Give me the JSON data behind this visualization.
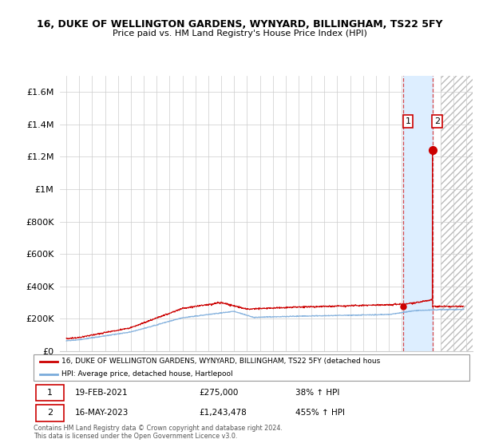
{
  "title": "16, DUKE OF WELLINGTON GARDENS, WYNYARD, BILLINGHAM, TS22 5FY",
  "subtitle": "Price paid vs. HM Land Registry's House Price Index (HPI)",
  "ylabel_ticks": [
    "£0",
    "£200K",
    "£400K",
    "£600K",
    "£800K",
    "£1M",
    "£1.2M",
    "£1.4M",
    "£1.6M"
  ],
  "ytick_values": [
    0,
    200000,
    400000,
    600000,
    800000,
    1000000,
    1200000,
    1400000,
    1600000
  ],
  "ylim": [
    0,
    1700000
  ],
  "xlim_start": 1994.5,
  "xlim_end": 2026.5,
  "hpi_color": "#7aabdb",
  "price_color": "#cc0000",
  "shaded_color": "#ddeeff",
  "grid_color": "#cccccc",
  "sale1_x": 2021.12,
  "sale1_y": 275000,
  "sale1_label": "1",
  "sale2_x": 2023.37,
  "sale2_y": 1243478,
  "sale2_label": "2",
  "legend_line1": "16, DUKE OF WELLINGTON GARDENS, WYNYARD, BILLINGHAM, TS22 5FY (detached hous",
  "legend_line2": "HPI: Average price, detached house, Hartlepool",
  "table_row1": [
    "1",
    "19-FEB-2021",
    "£275,000",
    "38% ↑ HPI"
  ],
  "table_row2": [
    "2",
    "16-MAY-2023",
    "£1,243,478",
    "455% ↑ HPI"
  ],
  "footnote1": "Contains HM Land Registry data © Crown copyright and database right 2024.",
  "footnote2": "This data is licensed under the Open Government Licence v3.0.",
  "bg_color": "#ffffff"
}
